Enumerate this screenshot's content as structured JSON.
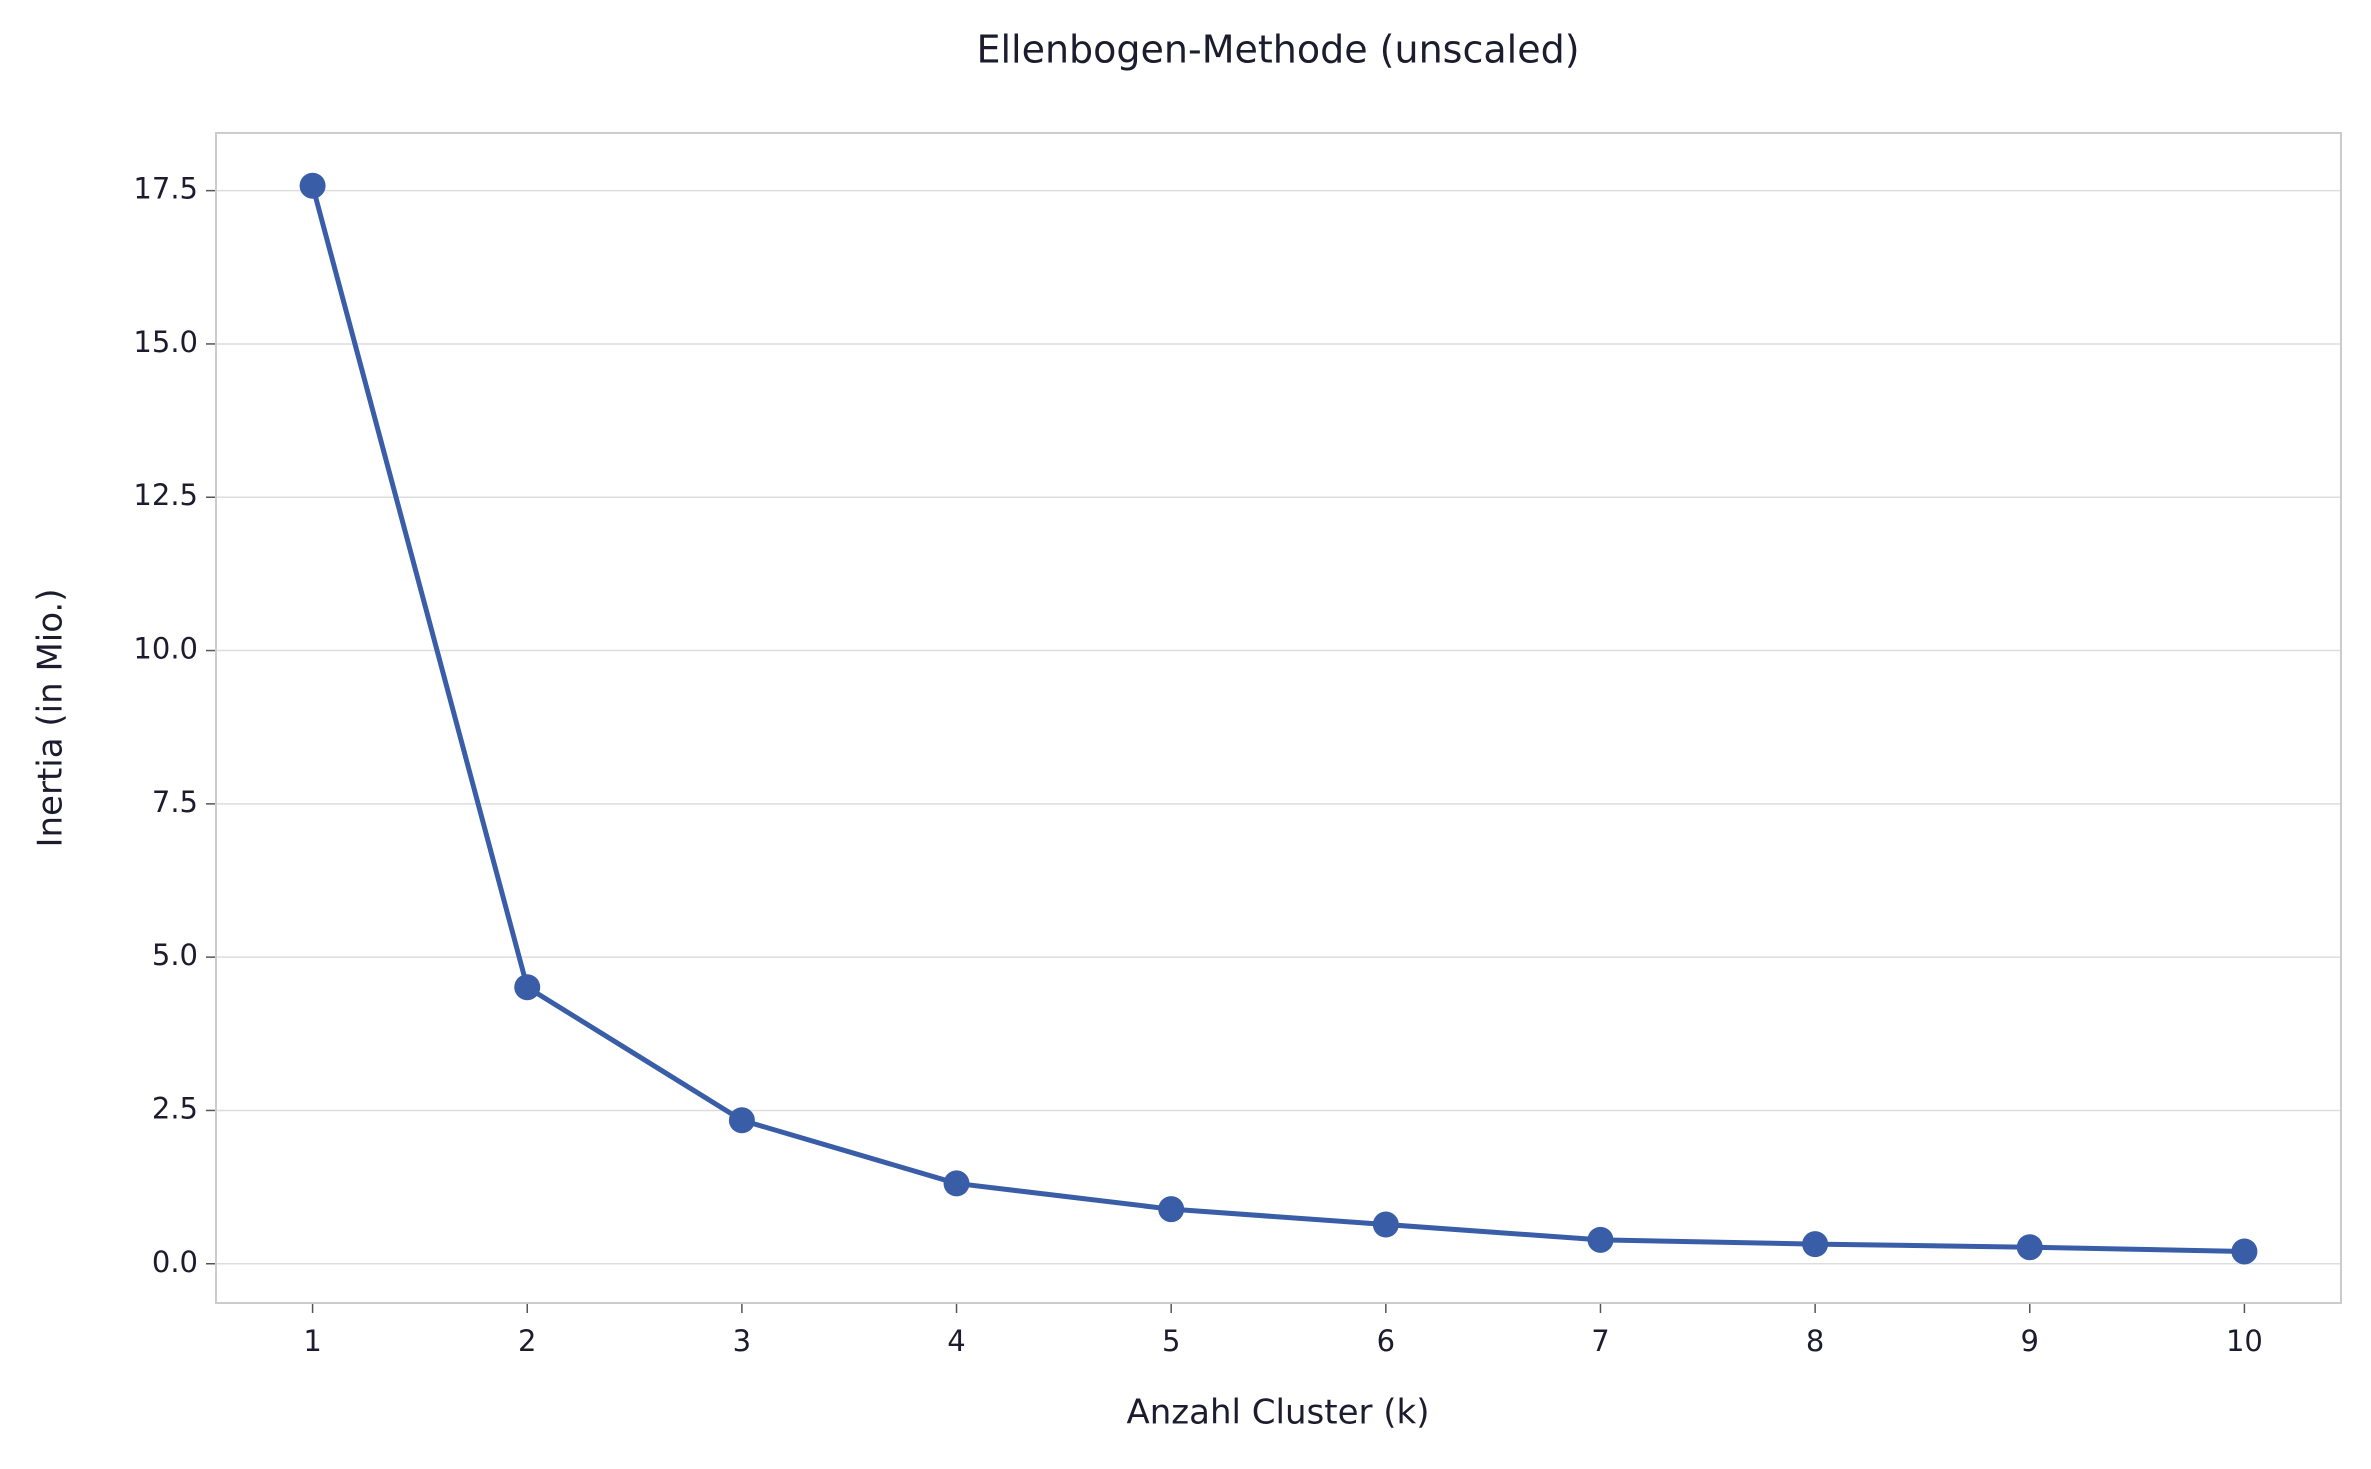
{
  "chart_data": {
    "type": "line",
    "title": "Ellenbogen-Methode (unscaled)",
    "x_label": "Anzahl Cluster (k)",
    "y_label": "Inertia (in Mio.)",
    "x": [
      1,
      2,
      3,
      4,
      5,
      6,
      7,
      8,
      9,
      10
    ],
    "series": [
      {
        "color": "#3a5da8",
        "values": [
          17.58,
          4.51,
          2.34,
          1.31,
          0.89,
          0.64,
          0.39,
          0.32,
          0.27,
          0.2
        ]
      }
    ],
    "xlim": [
      0.55,
      10.45
    ],
    "xticks": [
      1,
      2,
      3,
      4,
      5,
      6,
      7,
      8,
      9,
      10
    ],
    "ylim": [
      -0.64,
      18.44
    ],
    "yticks": [
      {
        "value": 0,
        "label": "0.0"
      },
      2.5,
      {
        "value": 5,
        "label": "5.0"
      },
      7.5,
      {
        "value": 10,
        "label": "10.0"
      },
      12.5,
      {
        "value": 15,
        "label": "15.0"
      },
      17.5
    ],
    "grid": "y"
  }
}
